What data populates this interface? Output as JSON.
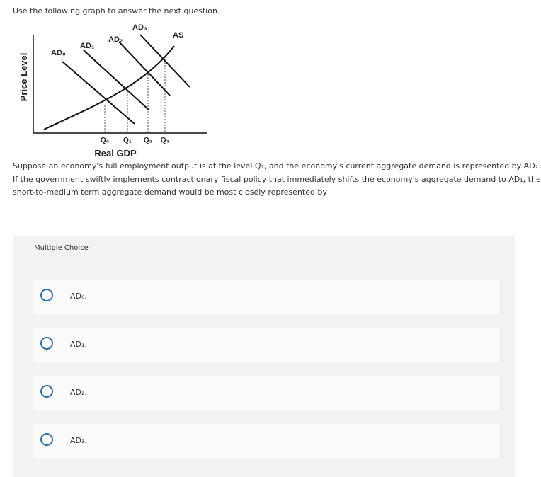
{
  "instruction": "Use the following graph to answer the next question.",
  "graph": {
    "y_axis_label": "Price Level",
    "x_axis_label": "Real GDP",
    "curve_labels": [
      "AD₀",
      "AD₁",
      "AD₂",
      "AD₃",
      "AS"
    ],
    "quantity_labels": [
      "Q₀",
      "Q₁",
      "Q₂",
      "Q₃"
    ]
  },
  "question": [
    "Suppose an economy's full employment output is at the level Q₁, and the economy's current aggregate demand is represented by AD₂.",
    "If the government swiftly implements contractionary fiscal policy that immediately shifts the economy's aggregate demand to AD₁, the",
    "short-to-medium term aggregate demand would be most closely represented by"
  ],
  "choice_header": "Multiple Choice",
  "options": [
    "AD₀.",
    "AD₁.",
    "AD₂.",
    "AD₃."
  ]
}
